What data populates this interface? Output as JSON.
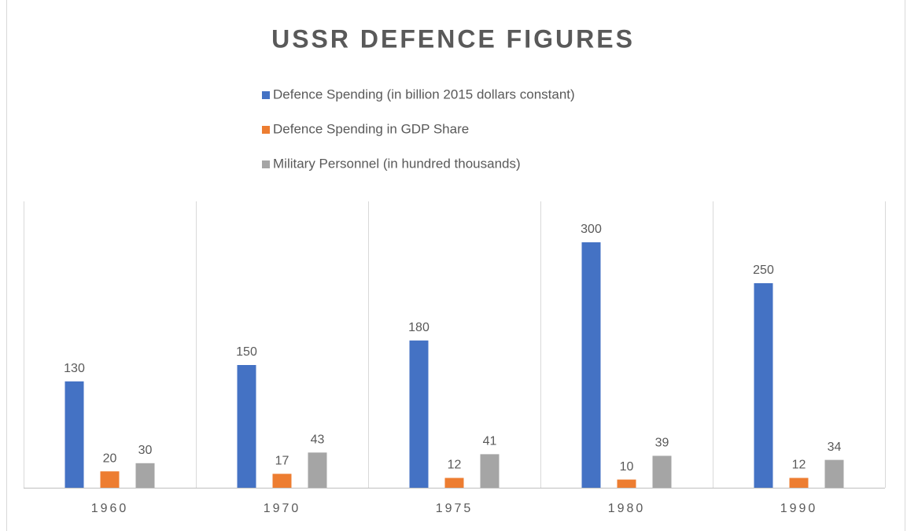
{
  "chart_data": {
    "type": "bar",
    "title": "USSR DEFENCE FIGURES",
    "categories": [
      "1960",
      "1970",
      "1975",
      "1980",
      "1990"
    ],
    "series": [
      {
        "name": "Defence Spending (in billion 2015 dollars constant)",
        "color": "#4472c4",
        "values": [
          130,
          150,
          180,
          300,
          250
        ]
      },
      {
        "name": "Defence Spending in GDP Share",
        "color": "#ed7d31",
        "values": [
          20,
          17,
          12,
          10,
          12
        ]
      },
      {
        "name": "Military Personnel (in hundred thousands)",
        "color": "#a5a5a5",
        "values": [
          30,
          43,
          41,
          39,
          34
        ]
      }
    ],
    "ylim": [
      0,
      350
    ],
    "legend": "top"
  }
}
